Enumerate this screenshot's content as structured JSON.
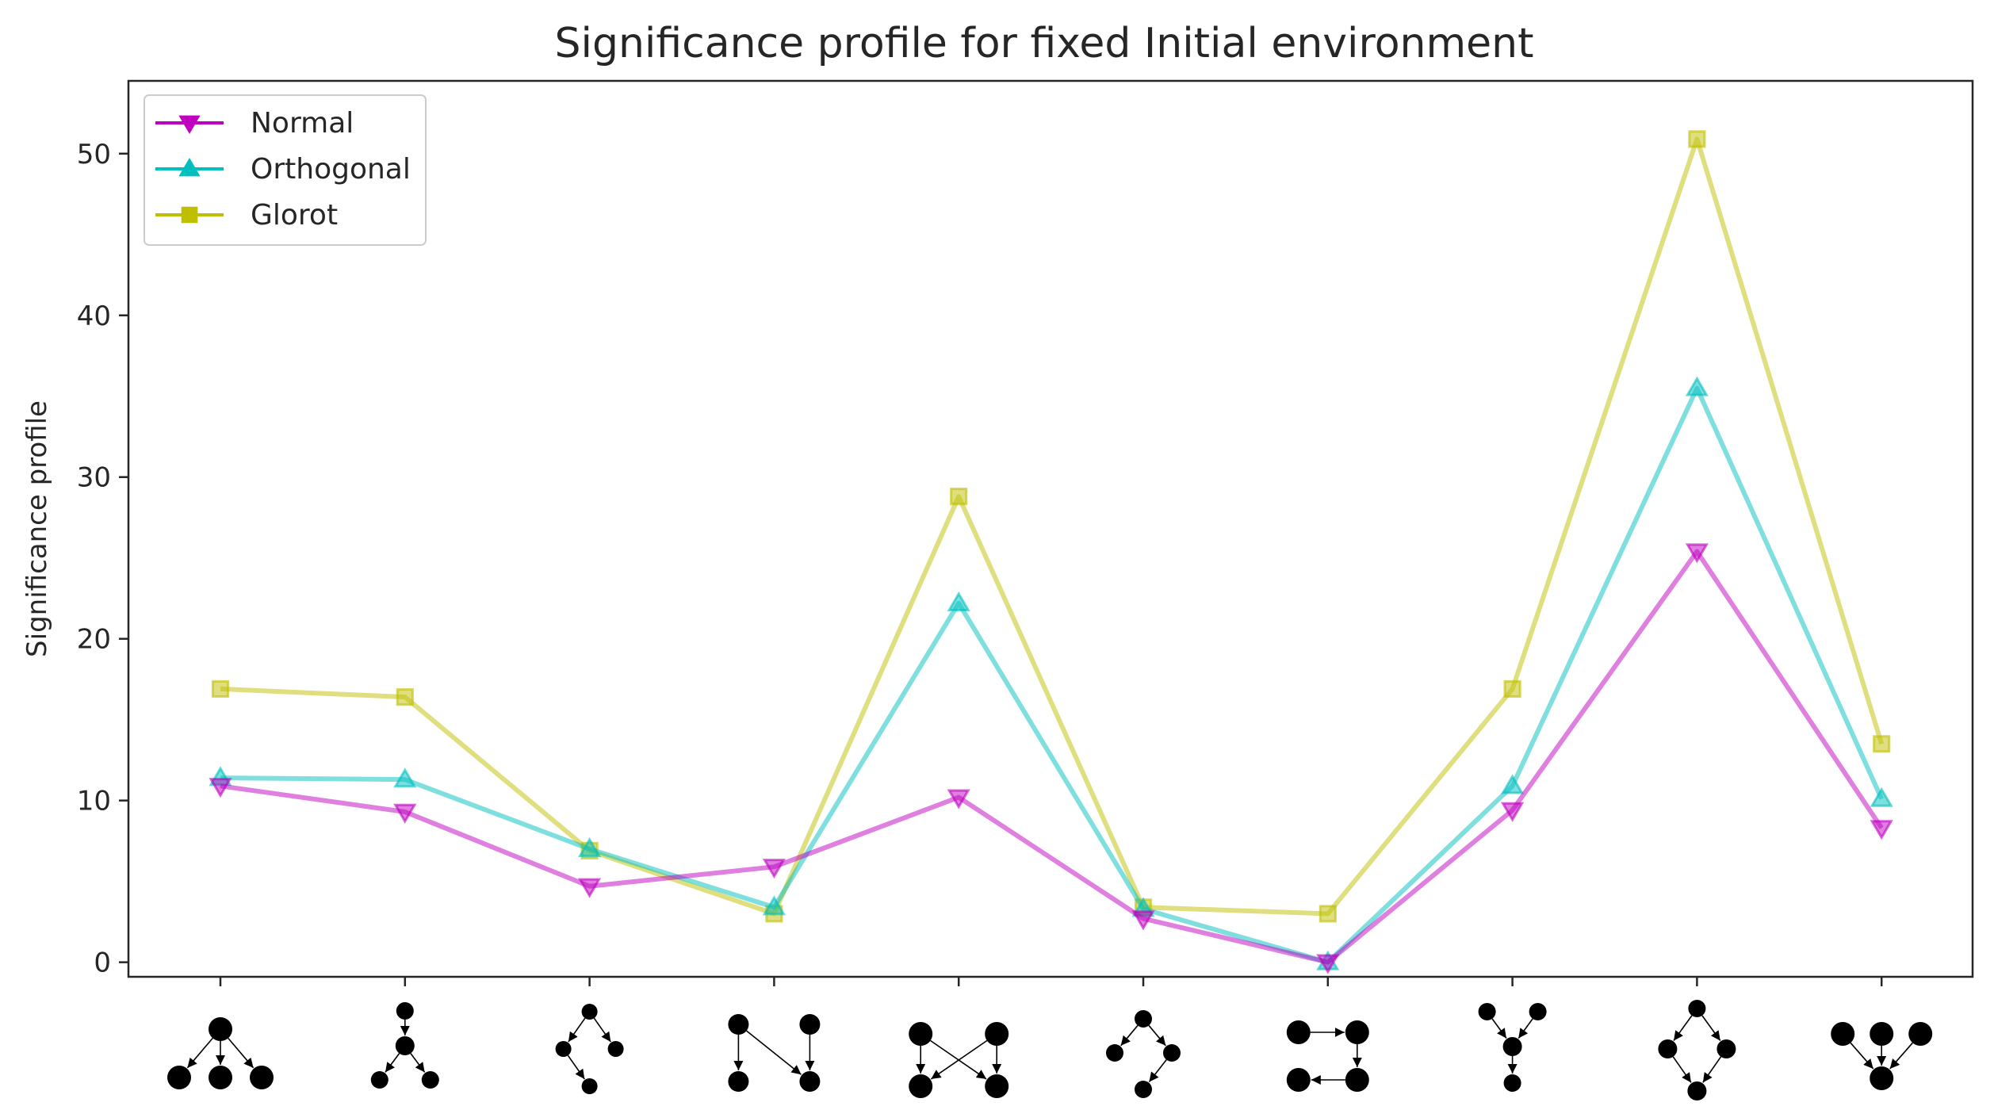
{
  "chart_data": {
    "type": "line",
    "title": "Significance profile for fixed Initial environment",
    "xlabel": "",
    "ylabel": "Significance profile",
    "ylim": [
      -0.9,
      54.5
    ],
    "yticks": [
      0,
      10,
      20,
      30,
      40,
      50
    ],
    "categories": [
      "motif-1",
      "motif-2",
      "motif-3",
      "motif-4",
      "motif-5",
      "motif-6",
      "motif-7",
      "motif-8",
      "motif-9",
      "motif-10"
    ],
    "grid": false,
    "legend_position": "top-left",
    "series": [
      {
        "name": "Normal",
        "color": "#bf00bf",
        "marker": "triangle-down",
        "values": [
          10.9,
          9.3,
          4.7,
          5.9,
          10.2,
          2.7,
          0.0,
          9.4,
          25.4,
          8.3
        ]
      },
      {
        "name": "Orthogonal",
        "color": "#00bfbf",
        "marker": "triangle-up",
        "values": [
          11.4,
          11.3,
          7.0,
          3.4,
          22.2,
          3.3,
          0.0,
          10.9,
          35.5,
          10.1
        ]
      },
      {
        "name": "Glorot",
        "color": "#bfbf00",
        "marker": "square",
        "values": [
          16.9,
          16.4,
          6.9,
          3.0,
          28.8,
          3.4,
          3.0,
          16.9,
          50.9,
          13.5
        ]
      }
    ]
  }
}
